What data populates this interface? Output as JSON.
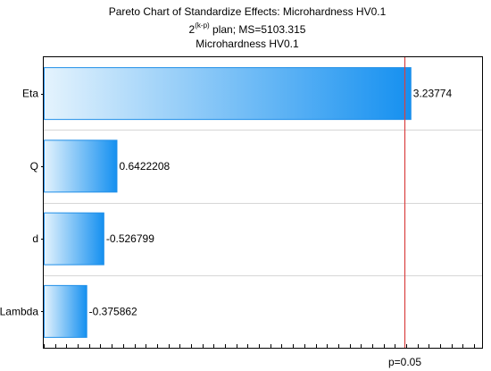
{
  "chart_data": {
    "type": "bar",
    "orientation": "horizontal",
    "title": "Pareto Chart  of Standardize Effects: Microhardness HV0.1",
    "subtitle_line1": {
      "prefix": "2",
      "superscript": "(k-p)",
      "rest": " plan;  MS=5103.315"
    },
    "subtitle_line2": "Microhardness HV0.1",
    "categories": [
      "Eta",
      "Q",
      "d",
      "Lambda"
    ],
    "values": [
      3.23774,
      0.6422208,
      0.526799,
      0.375862
    ],
    "value_labels": [
      "3.23774",
      "0.6422208",
      "-0.526799",
      "-0.375862"
    ],
    "xlim": [
      0,
      4.3
    ],
    "reference_line": {
      "value": 3.182,
      "label": "p=0.05",
      "color": "#d94040"
    },
    "grid": true,
    "bar_gradient": {
      "light": "#e4f3fd",
      "dark": "#1590f0",
      "border": "#1f8ee8"
    }
  }
}
